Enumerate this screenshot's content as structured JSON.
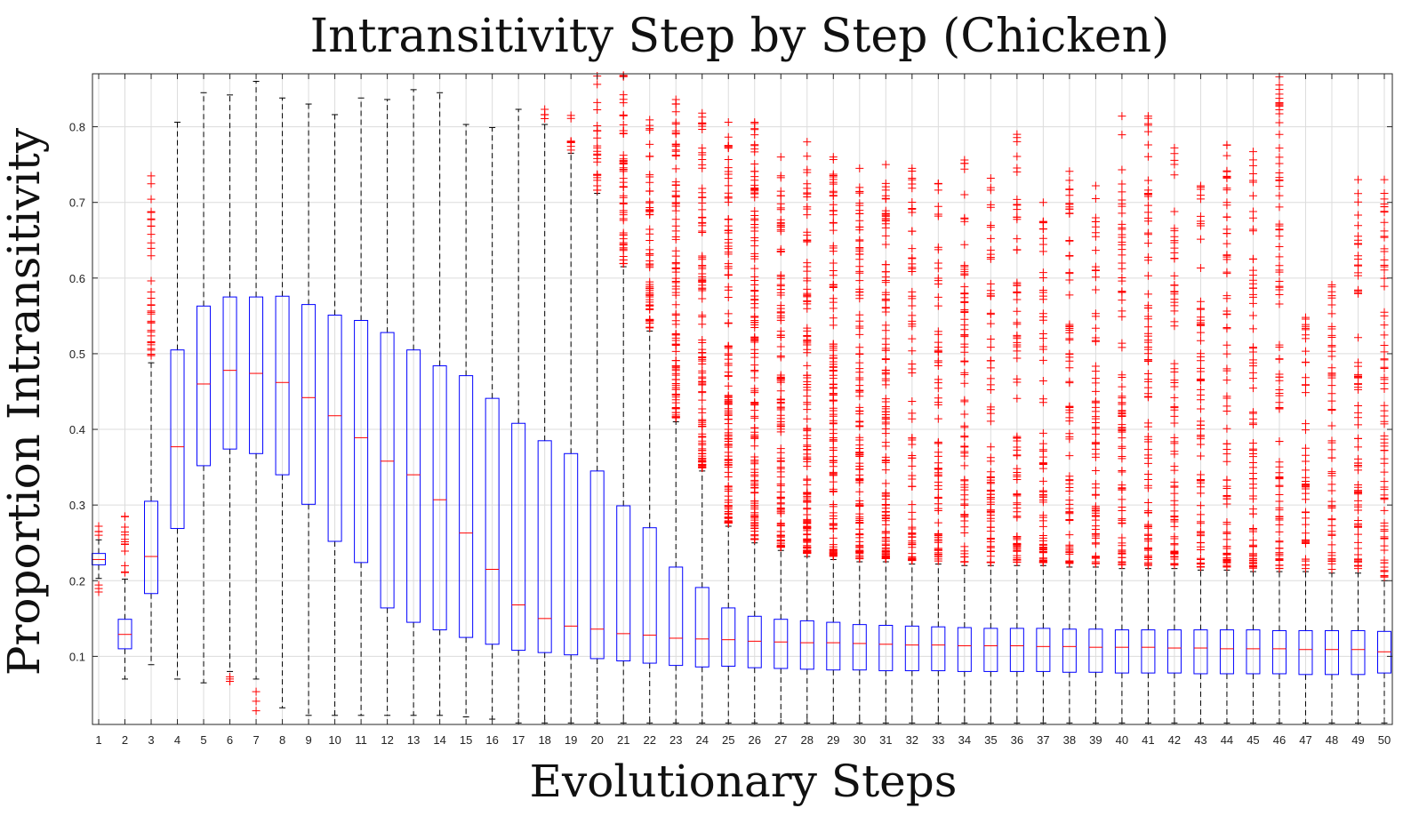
{
  "chart_data": {
    "type": "boxplot",
    "title": "Intransitivity Step by Step (Chicken)",
    "xlabel": "Evolutionary Steps",
    "ylabel": "Proportion Intransitivity",
    "ylim": [
      0.01,
      0.87
    ],
    "yticks": [
      0.1,
      0.2,
      0.3,
      0.4,
      0.5,
      0.6,
      0.7,
      0.8
    ],
    "grid": true,
    "colors": {
      "box": "#0000ff",
      "median": "#ff0000",
      "outlier": "#ff0000",
      "whisker": "#000000"
    },
    "categories": [
      "1",
      "2",
      "3",
      "4",
      "5",
      "6",
      "7",
      "8",
      "9",
      "10",
      "11",
      "12",
      "13",
      "14",
      "15",
      "16",
      "17",
      "18",
      "19",
      "20",
      "21",
      "22",
      "23",
      "24",
      "25",
      "26",
      "27",
      "28",
      "29",
      "30",
      "31",
      "32",
      "33",
      "34",
      "35",
      "36",
      "37",
      "38",
      "39",
      "40",
      "41",
      "42",
      "43",
      "44",
      "45",
      "46",
      "47",
      "48",
      "49",
      "50"
    ],
    "boxes": [
      {
        "q1": 0.221,
        "median": 0.228,
        "q3": 0.236,
        "whisker_low": 0.203,
        "whisker_high": 0.254,
        "outlier_low": 0.185,
        "outlier_high": 0.272
      },
      {
        "q1": 0.11,
        "median": 0.129,
        "q3": 0.149,
        "whisker_low": 0.07,
        "whisker_high": 0.202,
        "outlier_low": null,
        "outlier_high": 0.285
      },
      {
        "q1": 0.183,
        "median": 0.232,
        "q3": 0.305,
        "whisker_low": 0.089,
        "whisker_high": 0.488,
        "outlier_low": null,
        "outlier_high": 0.735
      },
      {
        "q1": 0.269,
        "median": 0.377,
        "q3": 0.505,
        "whisker_low": 0.07,
        "whisker_high": 0.806,
        "outlier_low": null,
        "outlier_high": null
      },
      {
        "q1": 0.352,
        "median": 0.46,
        "q3": 0.563,
        "whisker_low": 0.065,
        "whisker_high": 0.845,
        "outlier_low": null,
        "outlier_high": null
      },
      {
        "q1": 0.374,
        "median": 0.478,
        "q3": 0.575,
        "whisker_low": 0.08,
        "whisker_high": 0.842,
        "outlier_low": 0.067,
        "outlier_high": null
      },
      {
        "q1": 0.368,
        "median": 0.474,
        "q3": 0.575,
        "whisker_low": 0.07,
        "whisker_high": 0.86,
        "outlier_low": 0.028,
        "outlier_high": null
      },
      {
        "q1": 0.34,
        "median": 0.462,
        "q3": 0.576,
        "whisker_low": 0.032,
        "whisker_high": 0.838,
        "outlier_low": null,
        "outlier_high": null
      },
      {
        "q1": 0.301,
        "median": 0.442,
        "q3": 0.565,
        "whisker_low": 0.022,
        "whisker_high": 0.83,
        "outlier_low": null,
        "outlier_high": null
      },
      {
        "q1": 0.252,
        "median": 0.418,
        "q3": 0.551,
        "whisker_low": 0.022,
        "whisker_high": 0.816,
        "outlier_low": null,
        "outlier_high": null
      },
      {
        "q1": 0.224,
        "median": 0.389,
        "q3": 0.544,
        "whisker_low": 0.022,
        "whisker_high": 0.838,
        "outlier_low": null,
        "outlier_high": null
      },
      {
        "q1": 0.164,
        "median": 0.358,
        "q3": 0.528,
        "whisker_low": 0.022,
        "whisker_high": 0.836,
        "outlier_low": null,
        "outlier_high": null
      },
      {
        "q1": 0.145,
        "median": 0.34,
        "q3": 0.505,
        "whisker_low": 0.022,
        "whisker_high": 0.849,
        "outlier_low": null,
        "outlier_high": null
      },
      {
        "q1": 0.135,
        "median": 0.307,
        "q3": 0.484,
        "whisker_low": 0.022,
        "whisker_high": 0.845,
        "outlier_low": null,
        "outlier_high": null
      },
      {
        "q1": 0.125,
        "median": 0.263,
        "q3": 0.471,
        "whisker_low": 0.02,
        "whisker_high": 0.803,
        "outlier_low": null,
        "outlier_high": null
      },
      {
        "q1": 0.116,
        "median": 0.215,
        "q3": 0.441,
        "whisker_low": 0.017,
        "whisker_high": 0.799,
        "outlier_low": null,
        "outlier_high": null
      },
      {
        "q1": 0.108,
        "median": 0.168,
        "q3": 0.408,
        "whisker_low": 0.012,
        "whisker_high": 0.823,
        "outlier_low": null,
        "outlier_high": null
      },
      {
        "q1": 0.105,
        "median": 0.15,
        "q3": 0.385,
        "whisker_low": 0.012,
        "whisker_high": 0.803,
        "outlier_low": null,
        "outlier_high": 0.823
      },
      {
        "q1": 0.102,
        "median": 0.14,
        "q3": 0.368,
        "whisker_low": 0.012,
        "whisker_high": 0.765,
        "outlier_low": null,
        "outlier_high": 0.815
      },
      {
        "q1": 0.097,
        "median": 0.136,
        "q3": 0.345,
        "whisker_low": 0.012,
        "whisker_high": 0.712,
        "outlier_low": null,
        "outlier_high": 0.867
      },
      {
        "q1": 0.094,
        "median": 0.13,
        "q3": 0.299,
        "whisker_low": 0.012,
        "whisker_high": 0.615,
        "outlier_low": null,
        "outlier_high": 0.868
      },
      {
        "q1": 0.091,
        "median": 0.128,
        "q3": 0.27,
        "whisker_low": 0.012,
        "whisker_high": 0.53,
        "outlier_low": null,
        "outlier_high": 0.809
      },
      {
        "q1": 0.088,
        "median": 0.124,
        "q3": 0.218,
        "whisker_low": 0.012,
        "whisker_high": 0.41,
        "outlier_low": null,
        "outlier_high": 0.836
      },
      {
        "q1": 0.086,
        "median": 0.123,
        "q3": 0.191,
        "whisker_low": 0.012,
        "whisker_high": 0.345,
        "outlier_low": null,
        "outlier_high": 0.818
      },
      {
        "q1": 0.087,
        "median": 0.122,
        "q3": 0.164,
        "whisker_low": 0.012,
        "whisker_high": 0.272,
        "outlier_low": null,
        "outlier_high": 0.806
      },
      {
        "q1": 0.085,
        "median": 0.12,
        "q3": 0.153,
        "whisker_low": 0.012,
        "whisker_high": 0.25,
        "outlier_low": null,
        "outlier_high": 0.806
      },
      {
        "q1": 0.084,
        "median": 0.119,
        "q3": 0.149,
        "whisker_low": 0.012,
        "whisker_high": 0.24,
        "outlier_low": null,
        "outlier_high": 0.76
      },
      {
        "q1": 0.083,
        "median": 0.118,
        "q3": 0.147,
        "whisker_low": 0.012,
        "whisker_high": 0.232,
        "outlier_low": null,
        "outlier_high": 0.78
      },
      {
        "q1": 0.082,
        "median": 0.118,
        "q3": 0.145,
        "whisker_low": 0.012,
        "whisker_high": 0.228,
        "outlier_low": null,
        "outlier_high": 0.76
      },
      {
        "q1": 0.082,
        "median": 0.117,
        "q3": 0.142,
        "whisker_low": 0.012,
        "whisker_high": 0.225,
        "outlier_low": null,
        "outlier_high": 0.745
      },
      {
        "q1": 0.081,
        "median": 0.116,
        "q3": 0.141,
        "whisker_low": 0.012,
        "whisker_high": 0.225,
        "outlier_low": null,
        "outlier_high": 0.75
      },
      {
        "q1": 0.081,
        "median": 0.115,
        "q3": 0.14,
        "whisker_low": 0.012,
        "whisker_high": 0.222,
        "outlier_low": null,
        "outlier_high": 0.745
      },
      {
        "q1": 0.081,
        "median": 0.115,
        "q3": 0.139,
        "whisker_low": 0.012,
        "whisker_high": 0.222,
        "outlier_low": null,
        "outlier_high": 0.725
      },
      {
        "q1": 0.08,
        "median": 0.114,
        "q3": 0.138,
        "whisker_low": 0.012,
        "whisker_high": 0.22,
        "outlier_low": null,
        "outlier_high": 0.756
      },
      {
        "q1": 0.08,
        "median": 0.114,
        "q3": 0.137,
        "whisker_low": 0.012,
        "whisker_high": 0.22,
        "outlier_low": null,
        "outlier_high": 0.732
      },
      {
        "q1": 0.08,
        "median": 0.114,
        "q3": 0.137,
        "whisker_low": 0.012,
        "whisker_high": 0.22,
        "outlier_low": null,
        "outlier_high": 0.79
      },
      {
        "q1": 0.08,
        "median": 0.113,
        "q3": 0.137,
        "whisker_low": 0.012,
        "whisker_high": 0.22,
        "outlier_low": null,
        "outlier_high": 0.7
      },
      {
        "q1": 0.079,
        "median": 0.113,
        "q3": 0.136,
        "whisker_low": 0.012,
        "whisker_high": 0.218,
        "outlier_low": null,
        "outlier_high": 0.741
      },
      {
        "q1": 0.079,
        "median": 0.112,
        "q3": 0.136,
        "whisker_low": 0.012,
        "whisker_high": 0.218,
        "outlier_low": null,
        "outlier_high": 0.722
      },
      {
        "q1": 0.078,
        "median": 0.112,
        "q3": 0.135,
        "whisker_low": 0.012,
        "whisker_high": 0.216,
        "outlier_low": null,
        "outlier_high": 0.814
      },
      {
        "q1": 0.078,
        "median": 0.112,
        "q3": 0.135,
        "whisker_low": 0.012,
        "whisker_high": 0.216,
        "outlier_low": null,
        "outlier_high": 0.814
      },
      {
        "q1": 0.078,
        "median": 0.111,
        "q3": 0.135,
        "whisker_low": 0.012,
        "whisker_high": 0.216,
        "outlier_low": null,
        "outlier_high": 0.772
      },
      {
        "q1": 0.077,
        "median": 0.111,
        "q3": 0.135,
        "whisker_low": 0.012,
        "whisker_high": 0.214,
        "outlier_low": null,
        "outlier_high": 0.722
      },
      {
        "q1": 0.077,
        "median": 0.11,
        "q3": 0.135,
        "whisker_low": 0.012,
        "whisker_high": 0.214,
        "outlier_low": null,
        "outlier_high": 0.776
      },
      {
        "q1": 0.077,
        "median": 0.11,
        "q3": 0.135,
        "whisker_low": 0.012,
        "whisker_high": 0.212,
        "outlier_low": null,
        "outlier_high": 0.767
      },
      {
        "q1": 0.077,
        "median": 0.11,
        "q3": 0.134,
        "whisker_low": 0.012,
        "whisker_high": 0.212,
        "outlier_low": null,
        "outlier_high": 0.866
      },
      {
        "q1": 0.076,
        "median": 0.109,
        "q3": 0.134,
        "whisker_low": 0.012,
        "whisker_high": 0.212,
        "outlier_low": null,
        "outlier_high": 0.548
      },
      {
        "q1": 0.076,
        "median": 0.109,
        "q3": 0.134,
        "whisker_low": 0.012,
        "whisker_high": 0.21,
        "outlier_low": null,
        "outlier_high": 0.591
      },
      {
        "q1": 0.076,
        "median": 0.109,
        "q3": 0.134,
        "whisker_low": 0.012,
        "whisker_high": 0.21,
        "outlier_low": null,
        "outlier_high": 0.73
      },
      {
        "q1": 0.078,
        "median": 0.106,
        "q3": 0.133,
        "whisker_low": 0.012,
        "whisker_high": 0.2,
        "outlier_low": null,
        "outlier_high": 0.73
      }
    ]
  }
}
